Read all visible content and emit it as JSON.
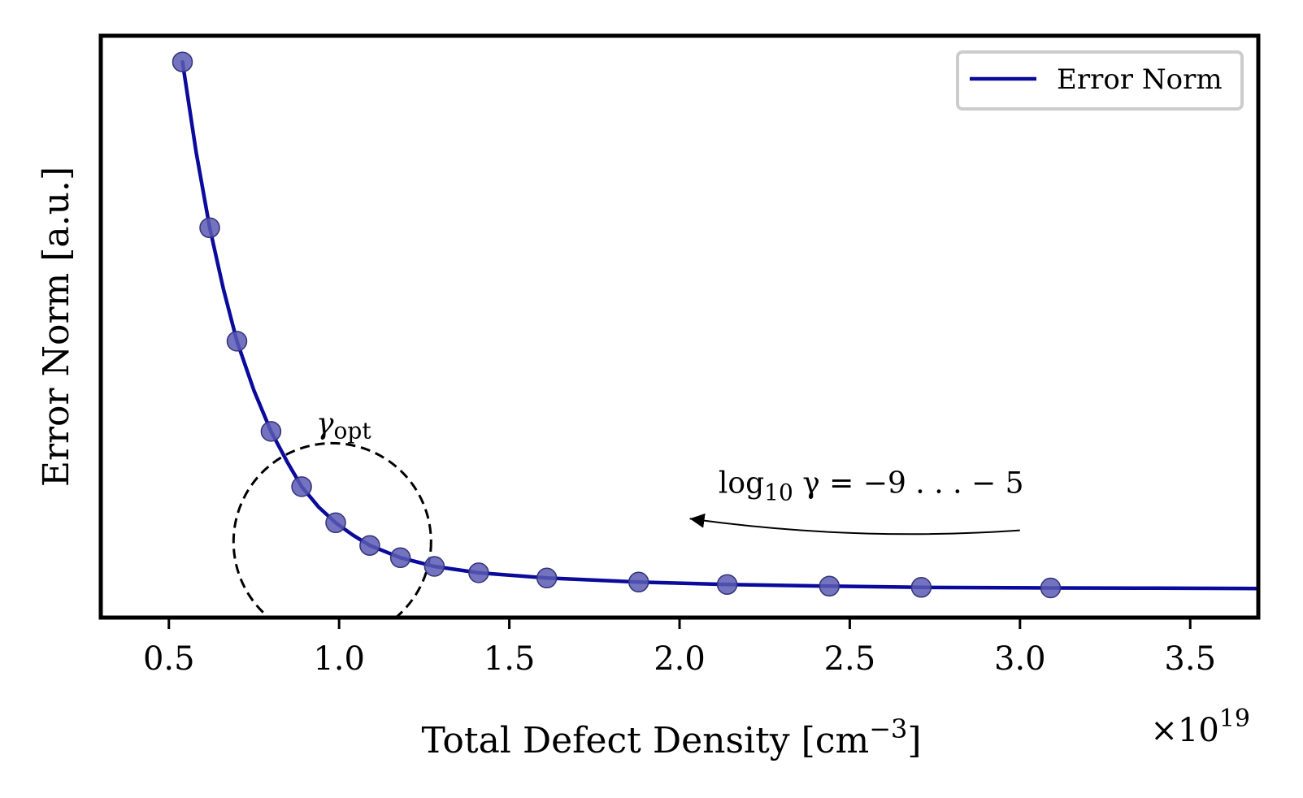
{
  "chart_data": {
    "type": "line",
    "xlabel": "Total Defect Density [cm",
    "xlabel_sup": "−3",
    "xlabel_end": "]",
    "ylabel": "Error Norm [a.u.]",
    "x_multiplier": "×10",
    "x_multiplier_exp": "19",
    "xlim": [
      0.3,
      3.7
    ],
    "ylim": [
      0.0,
      1.0
    ],
    "x_ticks": [
      {
        "value": 0.5,
        "label": "0.5"
      },
      {
        "value": 1.0,
        "label": "1.0"
      },
      {
        "value": 1.5,
        "label": "1.5"
      },
      {
        "value": 2.0,
        "label": "2.0"
      },
      {
        "value": 2.5,
        "label": "2.5"
      },
      {
        "value": 3.0,
        "label": "3.0"
      },
      {
        "value": 3.5,
        "label": "3.5"
      }
    ],
    "grid": false,
    "legend": {
      "position": "top-right",
      "entries": [
        "Error Norm"
      ]
    },
    "colors": {
      "line": "#0a0a9c",
      "marker": "#5a5ab4",
      "marker_edge": "#33337a"
    },
    "series": [
      {
        "name": "Error Norm",
        "points": [
          {
            "x": 0.54,
            "y": 0.955
          },
          {
            "x": 0.62,
            "y": 0.67
          },
          {
            "x": 0.7,
            "y": 0.475
          },
          {
            "x": 0.8,
            "y": 0.32
          },
          {
            "x": 0.89,
            "y": 0.225
          },
          {
            "x": 0.99,
            "y": 0.163
          },
          {
            "x": 1.09,
            "y": 0.124
          },
          {
            "x": 1.18,
            "y": 0.103
          },
          {
            "x": 1.28,
            "y": 0.088
          },
          {
            "x": 1.41,
            "y": 0.077
          },
          {
            "x": 1.61,
            "y": 0.068
          },
          {
            "x": 1.88,
            "y": 0.061
          },
          {
            "x": 2.14,
            "y": 0.057
          },
          {
            "x": 2.44,
            "y": 0.054
          },
          {
            "x": 2.71,
            "y": 0.052
          },
          {
            "x": 3.09,
            "y": 0.051
          }
        ],
        "line_points": [
          {
            "x": 0.54,
            "y": 0.955
          },
          {
            "x": 0.58,
            "y": 0.8
          },
          {
            "x": 0.62,
            "y": 0.67
          },
          {
            "x": 0.66,
            "y": 0.565
          },
          {
            "x": 0.7,
            "y": 0.475
          },
          {
            "x": 0.75,
            "y": 0.39
          },
          {
            "x": 0.8,
            "y": 0.32
          },
          {
            "x": 0.85,
            "y": 0.265
          },
          {
            "x": 0.89,
            "y": 0.225
          },
          {
            "x": 0.94,
            "y": 0.19
          },
          {
            "x": 0.99,
            "y": 0.163
          },
          {
            "x": 1.04,
            "y": 0.142
          },
          {
            "x": 1.09,
            "y": 0.124
          },
          {
            "x": 1.18,
            "y": 0.103
          },
          {
            "x": 1.28,
            "y": 0.088
          },
          {
            "x": 1.41,
            "y": 0.077
          },
          {
            "x": 1.61,
            "y": 0.068
          },
          {
            "x": 1.88,
            "y": 0.061
          },
          {
            "x": 2.14,
            "y": 0.057
          },
          {
            "x": 2.44,
            "y": 0.054
          },
          {
            "x": 2.71,
            "y": 0.052
          },
          {
            "x": 3.09,
            "y": 0.051
          },
          {
            "x": 3.4,
            "y": 0.0505
          },
          {
            "x": 3.7,
            "y": 0.05
          }
        ]
      }
    ],
    "annotations": [
      {
        "type": "dashed-circle",
        "label_main": "γ",
        "label_sub": "opt",
        "center": {
          "x": 0.98,
          "y": 0.13
        },
        "radius_x_units": 0.29
      },
      {
        "type": "arrow",
        "label_pre": "log",
        "label_sub": "10",
        "label_post": " γ = −9 . . . − 5",
        "from": {
          "x": 3.0,
          "y": 0.15
        },
        "to": {
          "x": 2.03,
          "y": 0.17
        }
      }
    ]
  }
}
